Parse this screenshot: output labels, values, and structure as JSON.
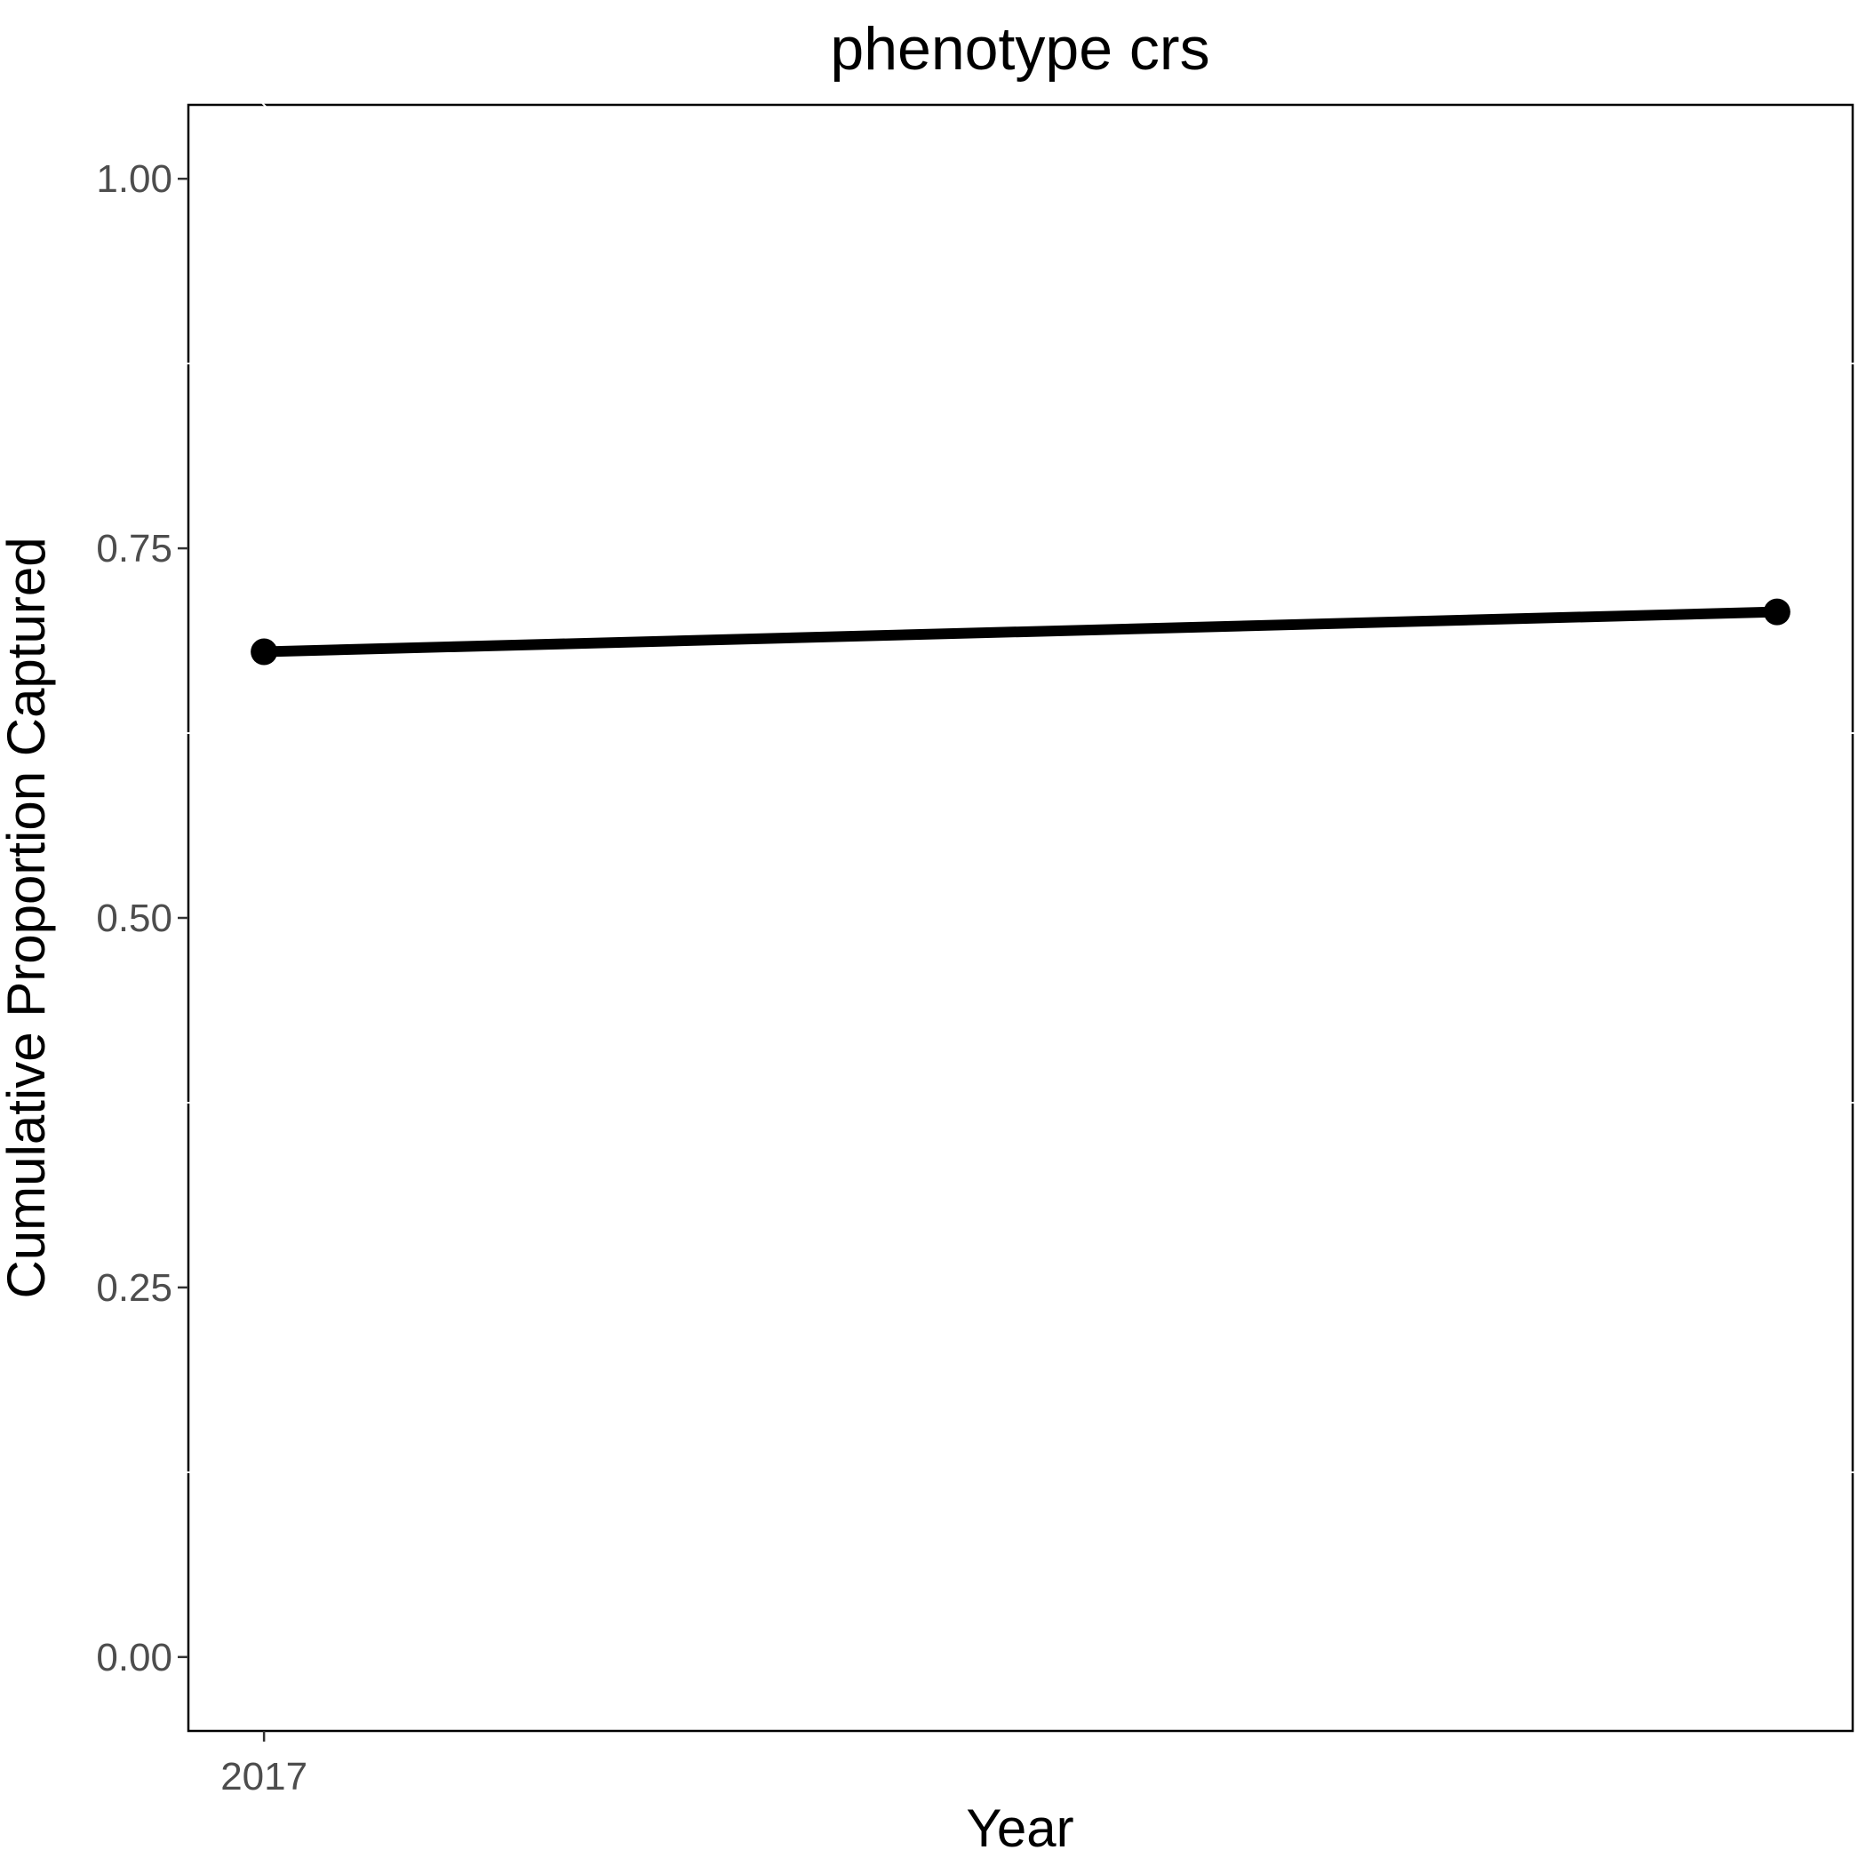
{
  "chart_data": {
    "type": "line",
    "title": "phenotype crs",
    "xlabel": "Year",
    "ylabel": "Cumulative Proportion Captured",
    "x_tick_labels": [
      "2017"
    ],
    "y_ticks": [
      0.0,
      0.25,
      0.5,
      0.75,
      1.0
    ],
    "y_tick_labels": [
      "0.00",
      "0.25",
      "0.50",
      "0.75",
      "1.00"
    ],
    "ylim": [
      -0.05,
      1.05
    ],
    "xlim": [
      2016.95,
      2018.05
    ],
    "grid": false,
    "series": [
      {
        "x": [
          2017,
          2018
        ],
        "y": [
          0.68,
          0.707
        ]
      }
    ],
    "colors": {
      "line": "#000000",
      "point": "#000000",
      "background": "#ffffff"
    }
  }
}
